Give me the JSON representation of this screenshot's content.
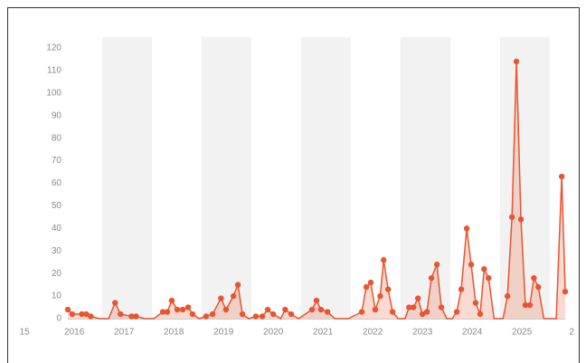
{
  "chart_data": {
    "type": "area",
    "x": [
      2015.87,
      2015.96,
      2016.15,
      2016.24,
      2016.33,
      2016.51,
      2016.69,
      2016.82,
      2016.93,
      2017.15,
      2017.24,
      2017.42,
      2017.6,
      2017.78,
      2017.87,
      2017.96,
      2018.07,
      2018.18,
      2018.29,
      2018.38,
      2018.51,
      2018.65,
      2018.78,
      2018.95,
      2019.05,
      2019.2,
      2019.29,
      2019.38,
      2019.51,
      2019.65,
      2019.78,
      2019.89,
      2020,
      2020.15,
      2020.24,
      2020.36,
      2020.51,
      2020.78,
      2020.87,
      2020.96,
      2021.09,
      2021.24,
      2021.51,
      2021.78,
      2021.87,
      2021.96,
      2022.05,
      2022.15,
      2022.22,
      2022.31,
      2022.4,
      2022.51,
      2022.65,
      2022.73,
      2022.82,
      2022.91,
      2023,
      2023.09,
      2023.18,
      2023.29,
      2023.38,
      2023.49,
      2023.6,
      2023.69,
      2023.78,
      2023.89,
      2023.98,
      2024.07,
      2024.16,
      2024.24,
      2024.33,
      2024.44,
      2024.62,
      2024.71,
      2024.8,
      2024.89,
      2024.98,
      2025.07,
      2025.16,
      2025.24,
      2025.33,
      2025.44,
      2025.6,
      2025.69,
      2025.8,
      2025.87
    ],
    "values": [
      4,
      2,
      2,
      2,
      1,
      0,
      0,
      7,
      2,
      1,
      1,
      0,
      0,
      3,
      3,
      8,
      4,
      4,
      5,
      2,
      0,
      1,
      2,
      9,
      4,
      10,
      15,
      2,
      0,
      1,
      1,
      4,
      2,
      0,
      4,
      2,
      0,
      4,
      8,
      4,
      3,
      0,
      0,
      3,
      14,
      16,
      4,
      10,
      26,
      13,
      3,
      0,
      0,
      5,
      5,
      9,
      2,
      3,
      18,
      24,
      5,
      0,
      0,
      3,
      13,
      40,
      24,
      7,
      2,
      22,
      18,
      0,
      0,
      10,
      45,
      114,
      44,
      6,
      6,
      18,
      14,
      0,
      0,
      0,
      63,
      12
    ],
    "color": "#e8552f",
    "xlim": [
      2015.87,
      2025.87
    ],
    "xticks": [
      {
        "value": 2015,
        "label": "15"
      },
      2016,
      2017,
      2018,
      2019,
      2020,
      2021,
      2022,
      2023,
      2024,
      2025,
      {
        "value": 2026,
        "label": "2"
      }
    ],
    "ylim": [
      0,
      120
    ],
    "yticks": [
      0,
      10,
      20,
      30,
      40,
      50,
      60,
      70,
      80,
      90,
      100,
      110,
      120
    ],
    "shaded_bands": [
      [
        2016.56,
        2017.56
      ],
      [
        2018.56,
        2019.56
      ],
      [
        2020.56,
        2021.56
      ],
      [
        2022.56,
        2023.56
      ],
      [
        2024.56,
        2025.56
      ]
    ]
  }
}
